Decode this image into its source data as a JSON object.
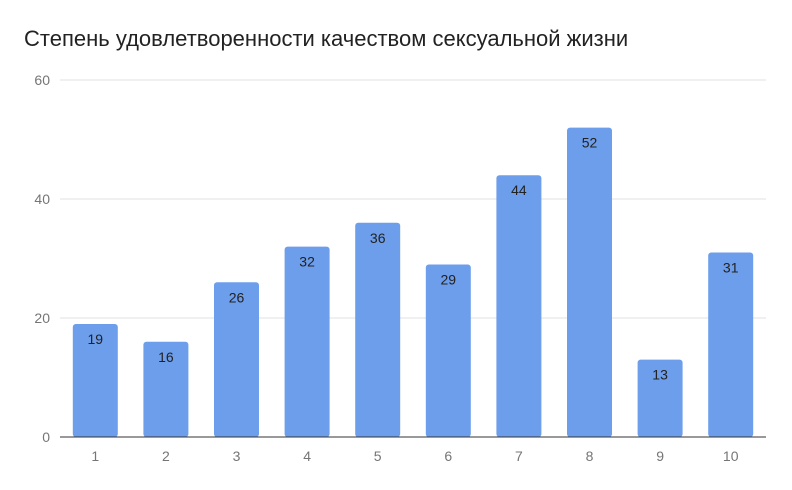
{
  "chart_data": {
    "type": "bar",
    "title": "Степень удовлетворенности качеством сексуальной жизни",
    "xlabel": "",
    "ylabel": "",
    "categories": [
      "1",
      "2",
      "3",
      "4",
      "5",
      "6",
      "7",
      "8",
      "9",
      "10"
    ],
    "values": [
      19,
      16,
      26,
      32,
      36,
      29,
      44,
      52,
      13,
      31
    ],
    "ylim": [
      0,
      60
    ],
    "yticks": [
      0,
      20,
      40,
      60
    ],
    "grid": true,
    "legend": "none",
    "data_labels": true,
    "colors": {
      "bar": "#6d9eeb",
      "grid": "#e0e0e0",
      "axis": "#333333"
    }
  }
}
